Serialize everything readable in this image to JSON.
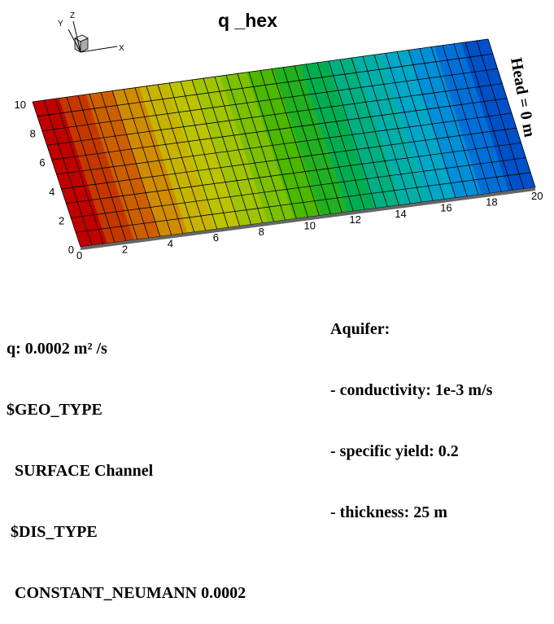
{
  "title": "q _hex",
  "mesh": {
    "colors": [
      "#c00000",
      "#c43800",
      "#cc6000",
      "#d08c00",
      "#c8b400",
      "#bcc400",
      "#a0c400",
      "#7cc000",
      "#4cb800",
      "#20b020",
      "#00ae50",
      "#00b080",
      "#00b0a8",
      "#00a8c8",
      "#0090d8",
      "#0070d8",
      "#0050c8"
    ],
    "x_ticks": [
      "0",
      "2",
      "4",
      "6",
      "8",
      "10",
      "12",
      "14",
      "16",
      "18",
      "20"
    ],
    "y_ticks": [
      "0",
      "2",
      "4",
      "6",
      "8",
      "10"
    ],
    "side_label": "Head = 0 m"
  },
  "triad": {
    "x": "X",
    "y": "Y",
    "z": "Z"
  },
  "left_text": [
    "q: 0.0002 m² /s",
    "$GEO_TYPE",
    "  SURFACE Channel",
    " $DIS_TYPE",
    "  CONSTANT_NEUMANN 0.0002"
  ],
  "right_text": [
    "Aquifer:",
    "- conductivity: 1e-3 m/s",
    "- specific yield: 0.2",
    "- thickness: 25 m"
  ]
}
